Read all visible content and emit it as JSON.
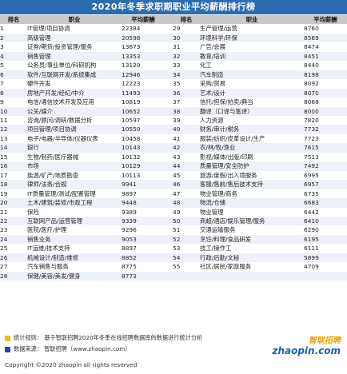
{
  "title": "2020年冬季求职期职业平均薪酬排行榜",
  "headers": {
    "rank": "排名",
    "job": "职业",
    "salary": "平均薪酬"
  },
  "left": [
    [
      "1",
      "IT管理/项目协调",
      "22384"
    ],
    [
      "2",
      "高级管理",
      "20598"
    ],
    [
      "3",
      "证券/期货/投资管理/服务",
      "13673"
    ],
    [
      "4",
      "销售管理",
      "13353"
    ],
    [
      "5",
      "公务员/事业单位/科研机构",
      "13120"
    ],
    [
      "6",
      "软件/互联网开发/系统集成",
      "12946"
    ],
    [
      "7",
      "硬件开发",
      "12223"
    ],
    [
      "8",
      "房地产开发/经纪/中介",
      "11493"
    ],
    [
      "9",
      "电信/通信技术开发及应用",
      "10819"
    ],
    [
      "10",
      "公关/媒介",
      "10652"
    ],
    [
      "11",
      "咨询/顾问/调研/数据分析",
      "10597"
    ],
    [
      "12",
      "项目管理/项目协调",
      "10550"
    ],
    [
      "13",
      "电子/电器/半导体/仪器仪表",
      "10458"
    ],
    [
      "14",
      "银行",
      "10143"
    ],
    [
      "15",
      "生物/制药/医疗器械",
      "10132"
    ],
    [
      "16",
      "市场",
      "10129"
    ],
    [
      "17",
      "能源/矿产/地质勘查",
      "10113"
    ],
    [
      "18",
      "律师/法务/合规",
      "9941"
    ],
    [
      "19",
      "IT质量管理/测试/配置管理",
      "9897"
    ],
    [
      "20",
      "土木/建筑/装修/市政工程",
      "9448"
    ],
    [
      "21",
      "保险",
      "9389"
    ],
    [
      "22",
      "互联网产品/运营管理",
      "9339"
    ],
    [
      "23",
      "医院/医疗/护理",
      "9296"
    ],
    [
      "24",
      "销售业务",
      "9053"
    ],
    [
      "25",
      "IT运维/技术支持",
      "8897"
    ],
    [
      "26",
      "机械设计/制造/维修",
      "8852"
    ],
    [
      "27",
      "汽车销售与服务",
      "8775"
    ],
    [
      "28",
      "保健/美容/美发/健身",
      "8773"
    ]
  ],
  "right": [
    [
      "29",
      "生产管理/运营",
      "8760"
    ],
    [
      "30",
      "环境科学/环保",
      "8569"
    ],
    [
      "31",
      "广告/会展",
      "8474"
    ],
    [
      "32",
      "教育/培训",
      "8451"
    ],
    [
      "33",
      "化工",
      "8440"
    ],
    [
      "34",
      "汽车制造",
      "8198"
    ],
    [
      "35",
      "采购/贸易",
      "8092"
    ],
    [
      "36",
      "艺术/设计",
      "8070"
    ],
    [
      "37",
      "信托/担保/拍卖/典当",
      "8068"
    ],
    [
      "38",
      "翻译（口译与笔译）",
      "8000"
    ],
    [
      "39",
      "人力资源",
      "7820"
    ],
    [
      "40",
      "财务/审计/税务",
      "7732"
    ],
    [
      "41",
      "服装/纺织/皮革设计/生产",
      "7723"
    ],
    [
      "42",
      "农/林/牧/渔业",
      "7615"
    ],
    [
      "43",
      "影视/媒体/出版/印刷",
      "7513"
    ],
    [
      "44",
      "质量管理/安全防护",
      "7492"
    ],
    [
      "45",
      "旅游/度假/出入境服务",
      "6995"
    ],
    [
      "46",
      "客服/售前/售后技术支持",
      "6957"
    ],
    [
      "47",
      "物业管理/商务",
      "6735"
    ],
    [
      "48",
      "物流/仓储",
      "6683"
    ],
    [
      "49",
      "物业管理",
      "6442"
    ],
    [
      "50",
      "商超/酒店/娱乐管理/服务",
      "6410"
    ],
    [
      "51",
      "交通运输服务",
      "6290"
    ],
    [
      "52",
      "烹饪/料理/食品研发",
      "6195"
    ],
    [
      "53",
      "技工/操作工",
      "6111"
    ],
    [
      "54",
      "行政/后勤/文秘",
      "5899"
    ],
    [
      "55",
      "社区/居民/家政服务",
      "4709"
    ]
  ],
  "footer": {
    "note1": "统计规则：  基于智联招聘2020年冬季在线招聘数据库的数据进行统计分析",
    "note2": "数据来源：  智联招聘（www.zhaopin.com）",
    "copyright": "Copyright ©2020 zhaopin all rights reserved",
    "logo_cn": "智联招聘",
    "logo_en": "zhaopin.com",
    "square1_color": "#f0c000",
    "square2_color": "#1f4fa0"
  }
}
